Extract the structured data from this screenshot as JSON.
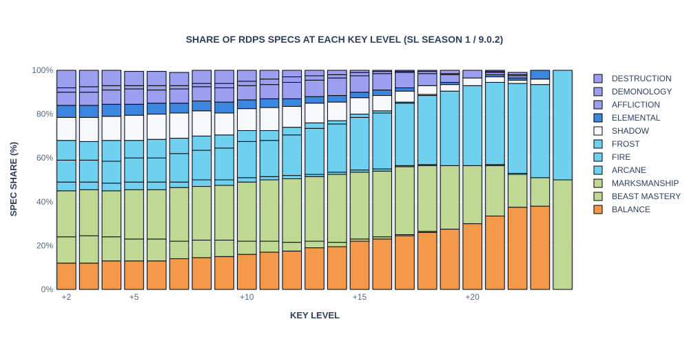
{
  "chart_data": {
    "type": "bar",
    "stacked": true,
    "title": "SHARE OF RDPS SPECS AT EACH KEY LEVEL (SL SEASON 1 / 9.0.2)",
    "xlabel": "KEY LEVEL",
    "ylabel": "SPEC SHARE (%)",
    "ylim": [
      0,
      100
    ],
    "y_ticks": [
      "0%",
      "20%",
      "40%",
      "60%",
      "80%",
      "100%"
    ],
    "y_tick_values": [
      0,
      20,
      40,
      60,
      80,
      100
    ],
    "x_tick_labels": [
      {
        "x": 2,
        "label": "+2"
      },
      {
        "x": 5,
        "label": "+5"
      },
      {
        "x": 10,
        "label": "+10"
      },
      {
        "x": 15,
        "label": "+15"
      },
      {
        "x": 20,
        "label": "+20"
      }
    ],
    "x": [
      2,
      3,
      4,
      5,
      6,
      7,
      8,
      9,
      10,
      11,
      12,
      13,
      14,
      15,
      16,
      17,
      18,
      19,
      20,
      21,
      22,
      23,
      24
    ],
    "grid": "horizontal",
    "legend_position": "right",
    "series": [
      {
        "name": "BALANCE",
        "color": "#f4994a",
        "values": [
          12,
          12,
          13,
          13,
          13,
          14,
          14.5,
          15,
          16,
          17,
          17.5,
          19,
          19.5,
          22,
          23,
          24.5,
          26,
          27.5,
          30,
          33.5,
          37.5,
          38,
          0
        ]
      },
      {
        "name": "BEAST MASTERY",
        "color": "#bfd994",
        "values": [
          12,
          12.5,
          11,
          10,
          10,
          8,
          8,
          7.5,
          6,
          5,
          4,
          3,
          2,
          1,
          1,
          0.5,
          0.5,
          0,
          0,
          0,
          0,
          0,
          0
        ]
      },
      {
        "name": "MARKSMANSHIP",
        "color": "#bfd994",
        "values": [
          21,
          21,
          21,
          22.5,
          22.5,
          24.5,
          24.5,
          25,
          27,
          28,
          29,
          29.5,
          31,
          30.5,
          30,
          31,
          30,
          29,
          26.5,
          23,
          15,
          13,
          50
        ]
      },
      {
        "name": "ARCANE",
        "color": "#6fd0f0",
        "values": [
          4,
          3.5,
          3.5,
          3.5,
          3.5,
          2.5,
          3,
          2.5,
          2,
          1.5,
          1.5,
          1,
          1,
          1,
          1,
          0.5,
          0.5,
          0,
          0,
          0.5,
          0.5,
          0,
          0
        ]
      },
      {
        "name": "FIRE",
        "color": "#6fd0f0",
        "values": [
          10,
          10,
          10,
          11,
          11,
          13,
          13.5,
          14.5,
          16.5,
          16.5,
          18.5,
          21,
          22,
          24,
          25.5,
          28.5,
          31.5,
          34,
          36.5,
          37.5,
          41,
          42.5,
          50
        ]
      },
      {
        "name": "FROST",
        "color": "#6fd0f0",
        "values": [
          9,
          8.5,
          9.5,
          8,
          8.5,
          7,
          6.5,
          6,
          5,
          4.5,
          3.5,
          2.5,
          1.5,
          1.5,
          1,
          0.5,
          0.5,
          0,
          0,
          0,
          0,
          0,
          0
        ]
      },
      {
        "name": "SHADOW",
        "color": "#f7f8fc",
        "values": [
          10.5,
          11,
          11,
          11.5,
          11.5,
          11.5,
          11.5,
          10,
          10,
          10.5,
          9.5,
          9,
          8.5,
          7.5,
          7,
          5,
          4,
          3,
          3.5,
          2.5,
          1.5,
          2.5,
          0
        ]
      },
      {
        "name": "ELEMENTAL",
        "color": "#3c86e0",
        "values": [
          5.5,
          5.5,
          5.5,
          5,
          5,
          4.5,
          4.5,
          5,
          4,
          4,
          3.5,
          3,
          3,
          2.5,
          2.5,
          1.5,
          0,
          1,
          0,
          1,
          1,
          4,
          0
        ]
      },
      {
        "name": "AFFLICTION",
        "color": "#9c9ff0",
        "values": [
          6,
          6,
          6.5,
          7,
          6,
          6.5,
          6.5,
          6.5,
          6.5,
          6.5,
          7.5,
          7.5,
          8,
          7.5,
          7.5,
          7,
          5.5,
          3.5,
          3.5,
          1,
          1,
          0,
          0
        ]
      },
      {
        "name": "DEMONOLOGY",
        "color": "#9c9ff0",
        "values": [
          2,
          2.5,
          2,
          1.5,
          2,
          1.5,
          1.5,
          2,
          2,
          2.5,
          2.5,
          2,
          1.5,
          1.5,
          1,
          0.5,
          1,
          0.5,
          0,
          0.5,
          0.5,
          0,
          0
        ]
      },
      {
        "name": "DESTRUCTION",
        "color": "#9c9ff0",
        "values": [
          8,
          7.5,
          7,
          6.5,
          6.5,
          6,
          6,
          6,
          5,
          4,
          3,
          2.5,
          2,
          1,
          0.5,
          0.5,
          0.5,
          1.5,
          0,
          0.5,
          1,
          0,
          0
        ]
      }
    ]
  }
}
